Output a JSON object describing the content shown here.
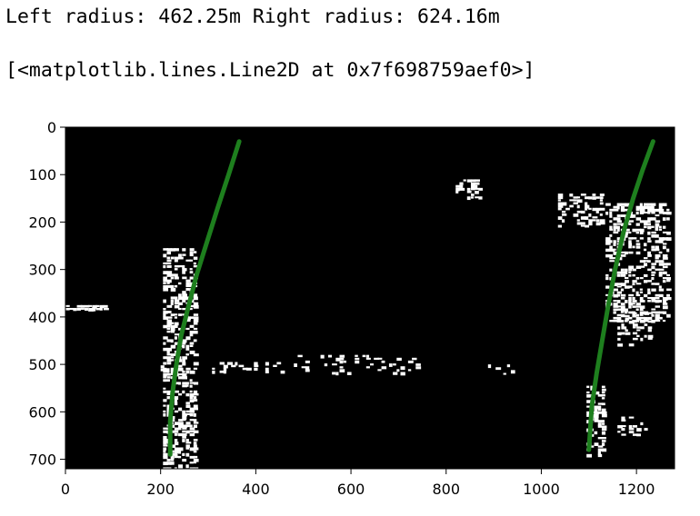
{
  "output": {
    "line1": "Left radius: 462.25m Right radius: 624.16m",
    "line2": "[<matplotlib.lines.Line2D at 0x7f698759aef0>]"
  },
  "chart_data": {
    "type": "line",
    "background": "binary lane-pixel image (white on black)",
    "image_color": "#000000",
    "pixel_color": "#ffffff",
    "line_color": "#1e7f1e",
    "xlim": [
      0,
      1280
    ],
    "ylim": [
      720,
      0
    ],
    "x_ticks": [
      0,
      200,
      400,
      600,
      800,
      1000,
      1200
    ],
    "y_ticks": [
      0,
      100,
      200,
      300,
      400,
      500,
      600,
      700
    ],
    "grid": false,
    "series": [
      {
        "x": [
          220,
          220,
          225,
          233,
          243,
          258,
          276,
          298,
          320,
          343,
          365
        ],
        "y": [
          690,
          620,
          560,
          500,
          440,
          380,
          310,
          240,
          170,
          100,
          30
        ]
      },
      {
        "x": [
          1100,
          1106,
          1116,
          1128,
          1140,
          1155,
          1173,
          1193,
          1213,
          1235
        ],
        "y": [
          680,
          590,
          520,
          450,
          380,
          300,
          220,
          150,
          90,
          30
        ]
      }
    ]
  }
}
